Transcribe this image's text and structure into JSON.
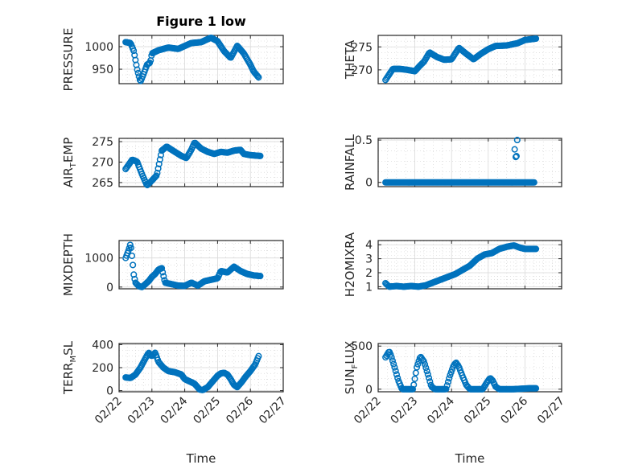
{
  "figure_title": "Figure 1 low",
  "colors": {
    "series": "#0072BD",
    "axes": "#262626",
    "grid": "#d9d9d9"
  },
  "x_axis": {
    "label": "Time",
    "ticks": [
      0,
      1,
      2,
      3,
      4,
      5
    ],
    "tick_labels": [
      "02/22",
      "02/23",
      "02/24",
      "02/25",
      "02/26",
      "02/27"
    ],
    "xlim": [
      0,
      5
    ]
  },
  "chart_data": [
    {
      "type": "scatter",
      "ylabel": "PRESSURE",
      "ylabel_sub": "",
      "ylim": [
        918,
        1025
      ],
      "yticks": [
        950,
        1000
      ],
      "ytick_labels": [
        "950",
        "1000"
      ],
      "x_range": [
        0.2,
        4.25
      ],
      "knots": [
        [
          0.2,
          1010
        ],
        [
          0.35,
          1008
        ],
        [
          0.45,
          990
        ],
        [
          0.55,
          950
        ],
        [
          0.65,
          922
        ],
        [
          0.75,
          940
        ],
        [
          0.85,
          960
        ],
        [
          0.95,
          965
        ],
        [
          1.0,
          985
        ],
        [
          1.2,
          992
        ],
        [
          1.5,
          998
        ],
        [
          1.8,
          995
        ],
        [
          2.2,
          1008
        ],
        [
          2.5,
          1010
        ],
        [
          2.8,
          1020
        ],
        [
          3.0,
          1012
        ],
        [
          3.2,
          990
        ],
        [
          3.4,
          975
        ],
        [
          3.6,
          1002
        ],
        [
          3.8,
          985
        ],
        [
          4.0,
          960
        ],
        [
          4.1,
          945
        ],
        [
          4.25,
          932
        ]
      ]
    },
    {
      "type": "scatter",
      "ylabel": "THETA",
      "ylabel_sub": "",
      "ylim": [
        267,
        277.5
      ],
      "yticks": [
        270,
        275
      ],
      "ytick_labels": [
        "270",
        "275"
      ],
      "x_range": [
        0.2,
        4.3
      ],
      "knots": [
        [
          0.2,
          267.8
        ],
        [
          0.4,
          270.2
        ],
        [
          0.6,
          270.2
        ],
        [
          0.8,
          270
        ],
        [
          1.0,
          269.7
        ],
        [
          1.1,
          270.6
        ],
        [
          1.25,
          271.8
        ],
        [
          1.4,
          273.8
        ],
        [
          1.6,
          272.8
        ],
        [
          1.8,
          272.2
        ],
        [
          2.0,
          272.3
        ],
        [
          2.2,
          274.8
        ],
        [
          2.4,
          273.5
        ],
        [
          2.6,
          272.3
        ],
        [
          2.8,
          273.5
        ],
        [
          3.0,
          274.5
        ],
        [
          3.2,
          275.2
        ],
        [
          3.5,
          275.3
        ],
        [
          3.8,
          275.8
        ],
        [
          4.0,
          276.5
        ],
        [
          4.3,
          276.8
        ]
      ]
    },
    {
      "type": "scatter",
      "ylabel": "AIR",
      "ylabel_sub": "T",
      "ylabel_tail": "EMP",
      "ylim": [
        264,
        275.8
      ],
      "yticks": [
        265,
        270,
        275
      ],
      "ytick_labels": [
        "265",
        "270",
        "275"
      ],
      "x_range": [
        0.2,
        4.3
      ],
      "knots": [
        [
          0.2,
          268.3
        ],
        [
          0.4,
          270.6
        ],
        [
          0.55,
          270.1
        ],
        [
          0.7,
          267
        ],
        [
          0.85,
          264.3
        ],
        [
          1.0,
          265.5
        ],
        [
          1.15,
          266.8
        ],
        [
          1.3,
          272.8
        ],
        [
          1.45,
          273.8
        ],
        [
          1.7,
          272.5
        ],
        [
          1.9,
          271.5
        ],
        [
          2.05,
          271.0
        ],
        [
          2.2,
          273
        ],
        [
          2.3,
          274.8
        ],
        [
          2.5,
          273.3
        ],
        [
          2.7,
          272.5
        ],
        [
          2.9,
          272.0
        ],
        [
          3.1,
          272.5
        ],
        [
          3.3,
          272.3
        ],
        [
          3.5,
          272.8
        ],
        [
          3.7,
          273.0
        ],
        [
          3.8,
          272.0
        ],
        [
          4.0,
          271.7
        ],
        [
          4.3,
          271.5
        ]
      ]
    },
    {
      "type": "scatter",
      "ylabel": "RAINFALL",
      "ylabel_sub": "",
      "ylim": [
        -0.05,
        0.52
      ],
      "yticks": [
        0,
        0.5
      ],
      "ytick_labels": [
        "0",
        "0.5"
      ],
      "x_range": [
        0.2,
        4.25
      ],
      "knots": [
        [
          0.2,
          0
        ],
        [
          4.25,
          0
        ]
      ],
      "extra_points": [
        [
          3.72,
          0.39
        ],
        [
          3.75,
          0.3
        ],
        [
          3.77,
          0.31
        ],
        [
          3.79,
          0.5
        ]
      ]
    },
    {
      "type": "scatter",
      "ylabel": "MIXDEPTH",
      "ylabel_sub": "",
      "ylim": [
        -60,
        1600
      ],
      "yticks": [
        0,
        1000
      ],
      "ytick_labels": [
        "0",
        "1000"
      ],
      "x_range": [
        0.2,
        4.3
      ],
      "knots": [
        [
          0.2,
          1000
        ],
        [
          0.25,
          1150
        ],
        [
          0.3,
          1300
        ],
        [
          0.35,
          1500
        ],
        [
          0.4,
          1000
        ],
        [
          0.45,
          400
        ],
        [
          0.5,
          150
        ],
        [
          0.6,
          30
        ],
        [
          0.7,
          0
        ],
        [
          0.8,
          100
        ],
        [
          0.9,
          200
        ],
        [
          1.0,
          350
        ],
        [
          1.1,
          450
        ],
        [
          1.2,
          600
        ],
        [
          1.3,
          650
        ],
        [
          1.4,
          150
        ],
        [
          1.6,
          100
        ],
        [
          1.8,
          50
        ],
        [
          2.0,
          40
        ],
        [
          2.2,
          150
        ],
        [
          2.4,
          50
        ],
        [
          2.6,
          200
        ],
        [
          2.8,
          250
        ],
        [
          3.0,
          300
        ],
        [
          3.1,
          550
        ],
        [
          3.3,
          500
        ],
        [
          3.5,
          700
        ],
        [
          3.7,
          550
        ],
        [
          3.9,
          450
        ],
        [
          4.1,
          400
        ],
        [
          4.3,
          380
        ]
      ]
    },
    {
      "type": "scatter",
      "ylabel": "H2OMIXRA",
      "ylabel_sub": "",
      "ylim": [
        0.85,
        4.3
      ],
      "yticks": [
        1,
        2,
        3,
        4
      ],
      "ytick_labels": [
        "1",
        "2",
        "3",
        "4"
      ],
      "x_range": [
        0.2,
        4.3
      ],
      "knots": [
        [
          0.2,
          1.25
        ],
        [
          0.3,
          1.0
        ],
        [
          0.5,
          1.05
        ],
        [
          0.7,
          1.0
        ],
        [
          0.9,
          1.05
        ],
        [
          1.1,
          1.0
        ],
        [
          1.3,
          1.1
        ],
        [
          1.5,
          1.3
        ],
        [
          1.7,
          1.5
        ],
        [
          1.9,
          1.7
        ],
        [
          2.1,
          1.9
        ],
        [
          2.3,
          2.2
        ],
        [
          2.5,
          2.5
        ],
        [
          2.7,
          3.0
        ],
        [
          2.9,
          3.3
        ],
        [
          3.1,
          3.4
        ],
        [
          3.3,
          3.7
        ],
        [
          3.5,
          3.85
        ],
        [
          3.7,
          3.95
        ],
        [
          3.85,
          3.8
        ],
        [
          4.0,
          3.7
        ],
        [
          4.3,
          3.7
        ]
      ]
    },
    {
      "type": "scatter",
      "ylabel": "TERR",
      "ylabel_sub": "M",
      "ylabel_tail": "SL",
      "ylim": [
        -10,
        410
      ],
      "yticks": [
        0,
        200,
        400
      ],
      "ytick_labels": [
        "0",
        "200",
        "400"
      ],
      "x_range": [
        0.2,
        4.25
      ],
      "knots": [
        [
          0.2,
          115
        ],
        [
          0.35,
          110
        ],
        [
          0.5,
          140
        ],
        [
          0.65,
          200
        ],
        [
          0.8,
          280
        ],
        [
          0.9,
          330
        ],
        [
          1.0,
          300
        ],
        [
          1.1,
          330
        ],
        [
          1.2,
          250
        ],
        [
          1.35,
          200
        ],
        [
          1.5,
          170
        ],
        [
          1.7,
          160
        ],
        [
          1.9,
          140
        ],
        [
          2.0,
          100
        ],
        [
          2.15,
          80
        ],
        [
          2.3,
          60
        ],
        [
          2.45,
          10
        ],
        [
          2.55,
          5
        ],
        [
          2.7,
          30
        ],
        [
          2.85,
          80
        ],
        [
          3.0,
          130
        ],
        [
          3.1,
          150
        ],
        [
          3.2,
          155
        ],
        [
          3.3,
          140
        ],
        [
          3.4,
          100
        ],
        [
          3.5,
          50
        ],
        [
          3.6,
          30
        ],
        [
          3.75,
          80
        ],
        [
          3.85,
          120
        ],
        [
          4.0,
          170
        ],
        [
          4.15,
          230
        ],
        [
          4.25,
          300
        ]
      ]
    },
    {
      "type": "scatter",
      "ylabel": "SUN",
      "ylabel_sub": "F",
      "ylabel_tail": "LUX",
      "ylim": [
        -30,
        530
      ],
      "yticks": [
        0,
        500
      ],
      "ytick_labels": [
        "0",
        "500"
      ],
      "x_range": [
        0.2,
        4.3
      ],
      "knots": [
        [
          0.2,
          370
        ],
        [
          0.3,
          440
        ],
        [
          0.35,
          390
        ],
        [
          0.45,
          250
        ],
        [
          0.55,
          100
        ],
        [
          0.65,
          0
        ],
        [
          0.8,
          0
        ],
        [
          0.95,
          0
        ],
        [
          1.05,
          250
        ],
        [
          1.15,
          380
        ],
        [
          1.25,
          320
        ],
        [
          1.35,
          180
        ],
        [
          1.45,
          30
        ],
        [
          1.55,
          0
        ],
        [
          1.7,
          0
        ],
        [
          1.85,
          0
        ],
        [
          1.95,
          150
        ],
        [
          2.05,
          270
        ],
        [
          2.12,
          310
        ],
        [
          2.2,
          260
        ],
        [
          2.3,
          150
        ],
        [
          2.4,
          50
        ],
        [
          2.5,
          0
        ],
        [
          2.7,
          0
        ],
        [
          2.85,
          0
        ],
        [
          2.95,
          70
        ],
        [
          3.05,
          130
        ],
        [
          3.12,
          100
        ],
        [
          3.2,
          30
        ],
        [
          3.3,
          0
        ],
        [
          3.5,
          0
        ],
        [
          3.7,
          0
        ],
        [
          3.9,
          5
        ],
        [
          4.1,
          10
        ],
        [
          4.3,
          10
        ]
      ]
    }
  ]
}
